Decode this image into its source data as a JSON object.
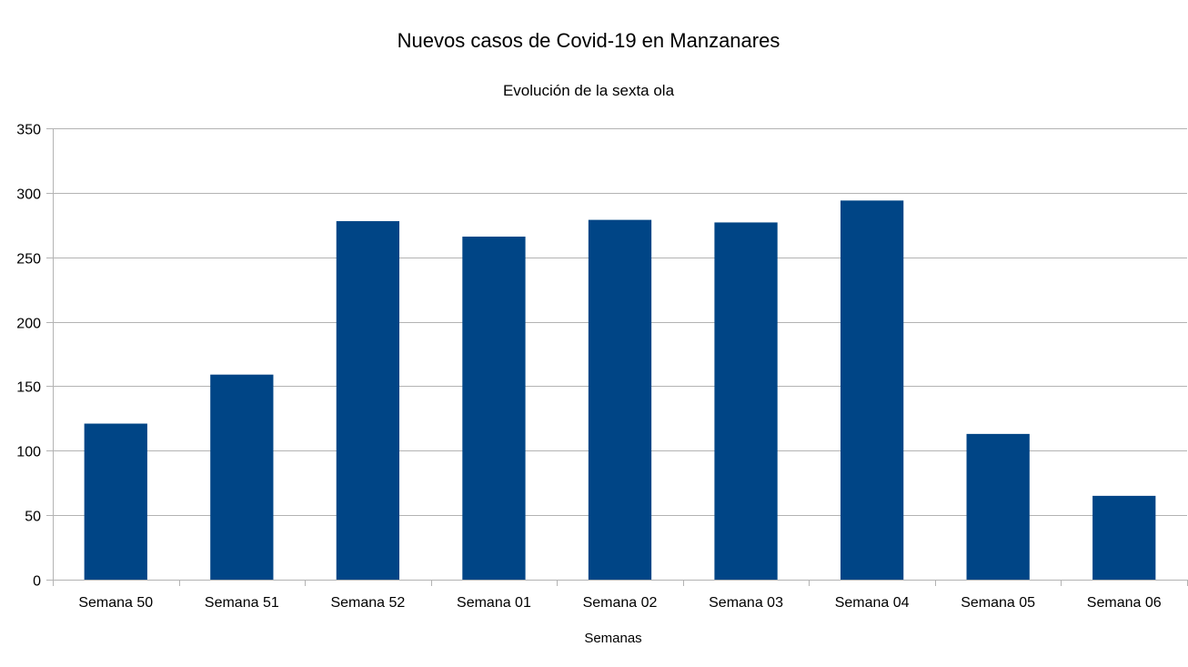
{
  "chart_data": {
    "type": "bar",
    "title": "Nuevos casos de Covid-19 en Manzanares",
    "subtitle": "Evolución de la sexta ola",
    "xlabel": "Semanas",
    "ylabel": "",
    "categories": [
      "Semana 50",
      "Semana 51",
      "Semana 52",
      "Semana 01",
      "Semana 02",
      "Semana 03",
      "Semana 04",
      "Semana 05",
      "Semana 06"
    ],
    "values": [
      121,
      159,
      278,
      266,
      279,
      277,
      294,
      113,
      65
    ],
    "ylim": [
      0,
      350
    ],
    "yticks": [
      0,
      50,
      100,
      150,
      200,
      250,
      300,
      350
    ],
    "ytick_labels": [
      "0",
      "50",
      "100",
      "150",
      "200",
      "250",
      "300",
      "350"
    ],
    "bar_color": "#004586",
    "grid": true,
    "legend": "none"
  }
}
